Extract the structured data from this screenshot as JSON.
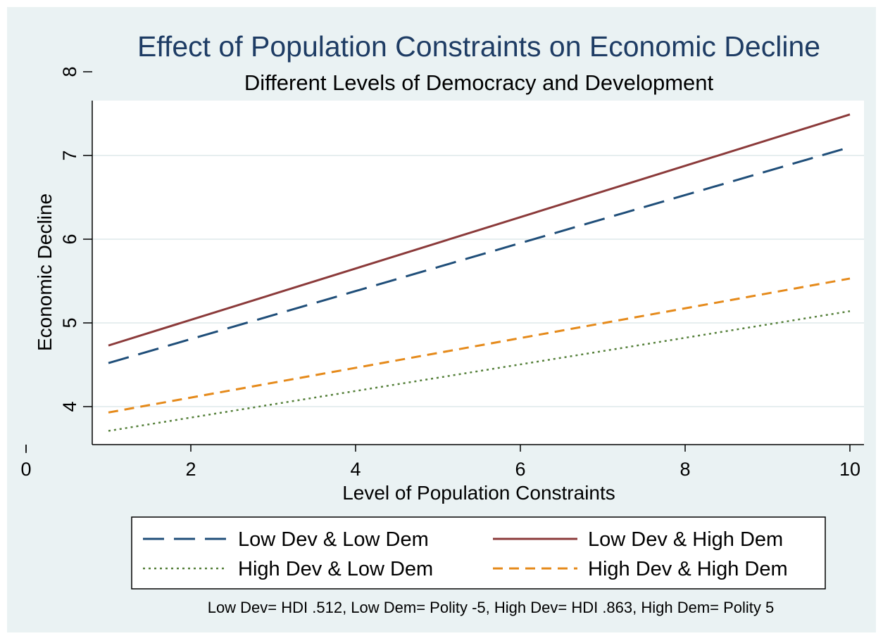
{
  "chart_data": {
    "type": "line",
    "title": "Effect of Population Constraints on Economic Decline",
    "subtitle": "Different Levels of Democracy and Development",
    "xlabel": "Level of Population Constraints",
    "ylabel": "Economic Decline",
    "xlim": [
      0,
      10
    ],
    "ylim": [
      3.55,
      8
    ],
    "x_ticks": [
      "0",
      "2",
      "4",
      "6",
      "8",
      "10"
    ],
    "x_tick_values": [
      0,
      2,
      4,
      6,
      8,
      10
    ],
    "y_ticks": [
      "4",
      "5",
      "6",
      "7",
      "8"
    ],
    "y_tick_values": [
      4,
      5,
      6,
      7,
      8
    ],
    "grid": "horizontal",
    "legend_position": "bottom",
    "series": [
      {
        "name": "Low Dev & Low Dem",
        "x": [
          1,
          10
        ],
        "y": [
          4.52,
          7.1
        ],
        "color": "#1f4e79",
        "style": "longdash"
      },
      {
        "name": "Low Dev & High Dem",
        "x": [
          1,
          10
        ],
        "y": [
          4.73,
          7.49
        ],
        "color": "#8b3a3a",
        "style": "solid"
      },
      {
        "name": "High Dev & Low Dem",
        "x": [
          1,
          10
        ],
        "y": [
          3.71,
          5.14
        ],
        "color": "#55803a",
        "style": "dot"
      },
      {
        "name": "High Dev & High Dem",
        "x": [
          1,
          10
        ],
        "y": [
          3.93,
          5.53
        ],
        "color": "#e58a1b",
        "style": "dash"
      }
    ],
    "note": "Low Dev= HDI .512, Low Dem= Polity -5, High Dev= HDI .863, High Dem= Polity 5",
    "colors": {
      "outer_bg": "#eaf2f3",
      "plot_bg": "#ffffff",
      "grid": "#e6eeef",
      "title": "#1e3c64",
      "text": "#000000"
    }
  }
}
